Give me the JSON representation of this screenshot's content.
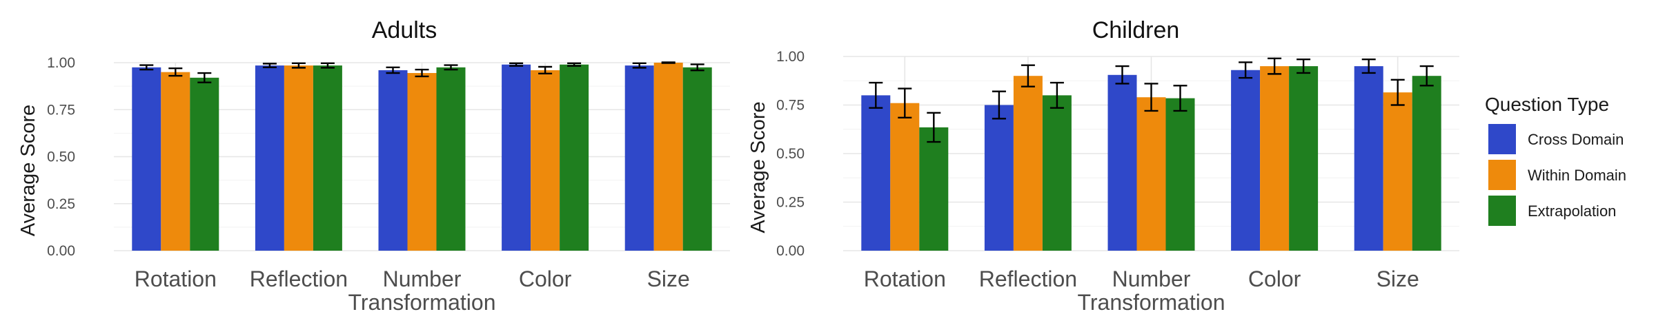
{
  "chart_data": [
    {
      "type": "bar",
      "title": "Adults",
      "ylabel": "Average Score",
      "xlabel": "",
      "ylim": [
        0,
        1
      ],
      "yticks": [
        "0.00",
        "0.25",
        "0.50",
        "0.75",
        "1.00"
      ],
      "categories": [
        "Rotation",
        "Reflection",
        "Number\nTransformation",
        "Color",
        "Size"
      ],
      "series": [
        {
          "name": "Cross Domain",
          "color": "#2f48c9",
          "values": [
            0.975,
            0.985,
            0.96,
            0.99,
            0.985
          ],
          "err": [
            0.012,
            0.01,
            0.015,
            0.007,
            0.012
          ]
        },
        {
          "name": "Within Domain",
          "color": "#ee8a0c",
          "values": [
            0.95,
            0.985,
            0.945,
            0.96,
            1.0
          ],
          "err": [
            0.02,
            0.012,
            0.018,
            0.018,
            0.002
          ]
        },
        {
          "name": "Extrapolation",
          "color": "#1f7f1f",
          "values": [
            0.92,
            0.985,
            0.975,
            0.99,
            0.975
          ],
          "err": [
            0.025,
            0.012,
            0.012,
            0.007,
            0.016
          ]
        }
      ]
    },
    {
      "type": "bar",
      "title": "Children",
      "ylabel": "Average Score",
      "xlabel": "",
      "ylim": [
        0,
        1
      ],
      "yticks": [
        "0.00",
        "0.25",
        "0.50",
        "0.75",
        "1.00"
      ],
      "categories": [
        "Rotation",
        "Reflection",
        "Number\nTransformation",
        "Color",
        "Size"
      ],
      "series": [
        {
          "name": "Cross Domain",
          "color": "#2f48c9",
          "values": [
            0.8,
            0.75,
            0.905,
            0.93,
            0.95
          ],
          "err": [
            0.065,
            0.07,
            0.045,
            0.04,
            0.035
          ]
        },
        {
          "name": "Within Domain",
          "color": "#ee8a0c",
          "values": [
            0.76,
            0.9,
            0.79,
            0.95,
            0.815
          ],
          "err": [
            0.075,
            0.055,
            0.07,
            0.04,
            0.065
          ]
        },
        {
          "name": "Extrapolation",
          "color": "#1f7f1f",
          "values": [
            0.635,
            0.8,
            0.785,
            0.95,
            0.9
          ],
          "err": [
            0.075,
            0.065,
            0.065,
            0.035,
            0.05
          ]
        }
      ]
    }
  ],
  "legend": {
    "title": "Question Type",
    "items": [
      {
        "label": "Cross Domain",
        "color": "#2f48c9"
      },
      {
        "label": "Within Domain",
        "color": "#ee8a0c"
      },
      {
        "label": "Extrapolation",
        "color": "#1f7f1f"
      }
    ]
  }
}
